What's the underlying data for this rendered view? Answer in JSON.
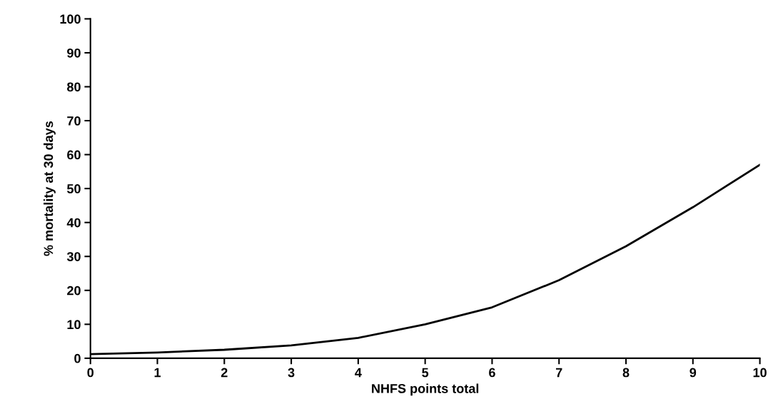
{
  "chart_data": {
    "type": "line",
    "xlabel": "NHFS points total",
    "ylabel": "% mortality at 30 days",
    "x": [
      0,
      1,
      2,
      3,
      4,
      5,
      6,
      7,
      8,
      9,
      10
    ],
    "series": [
      {
        "color": "#000000",
        "values": [
          1.2,
          1.7,
          2.5,
          3.8,
          6,
          10,
          15,
          23,
          33,
          44.5,
          57
        ]
      }
    ],
    "xlim": [
      0,
      10
    ],
    "ylim": [
      0,
      100
    ],
    "xticks": [
      0,
      1,
      2,
      3,
      4,
      5,
      6,
      7,
      8,
      9,
      10
    ],
    "yticks": [
      0,
      10,
      20,
      30,
      40,
      50,
      60,
      70,
      80,
      90,
      100
    ],
    "grid": false,
    "marker": "none",
    "line_style": "solid"
  }
}
